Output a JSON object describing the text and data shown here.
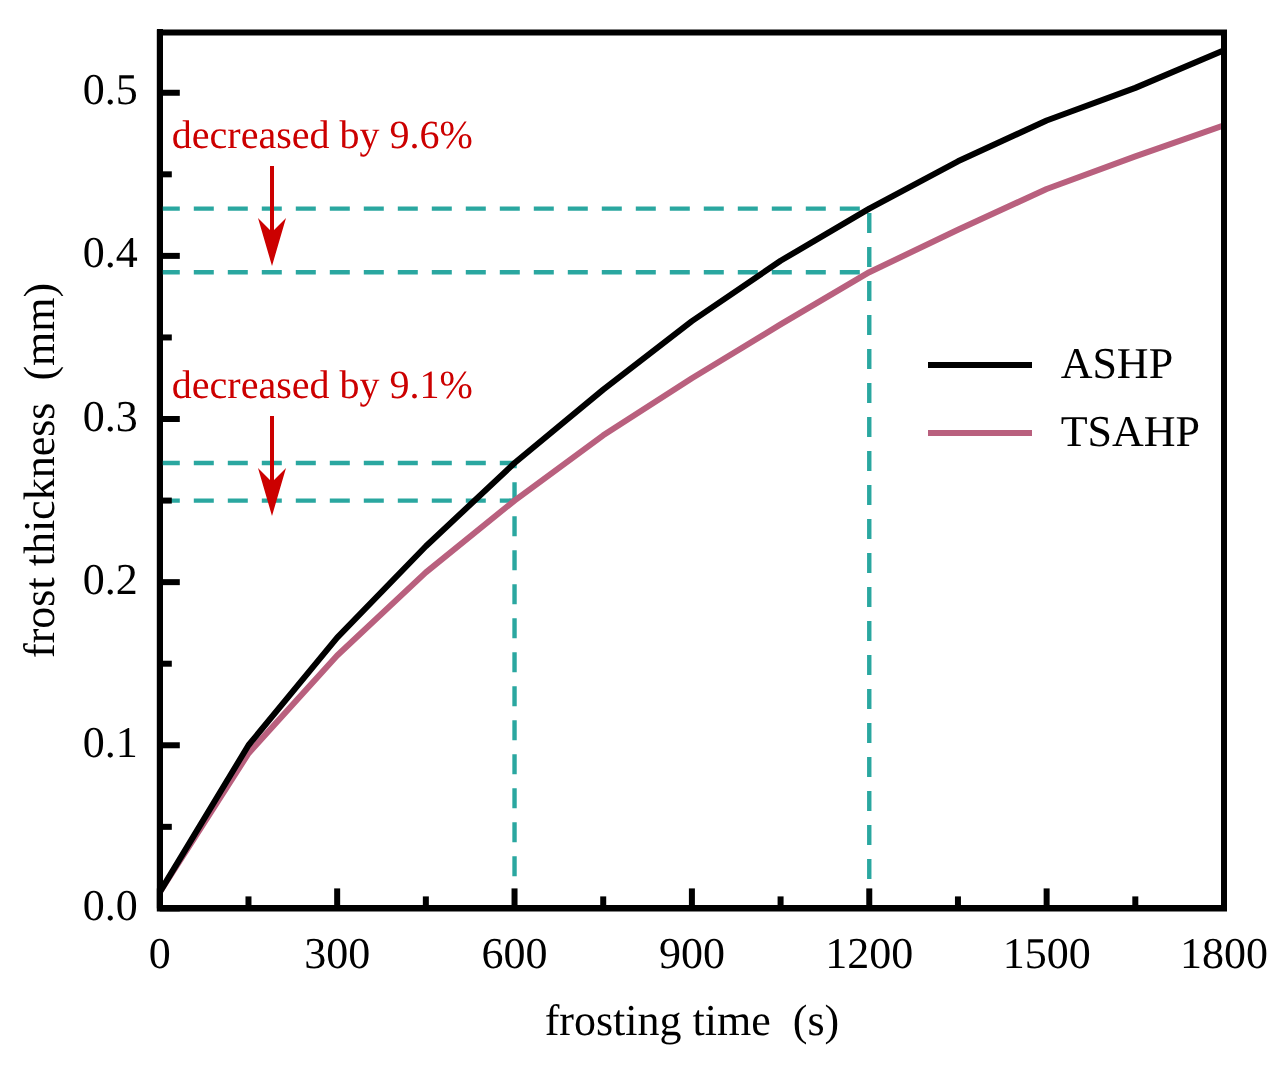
{
  "chart_data": {
    "type": "line",
    "xlabel": "frosting time  (s)",
    "ylabel": "frost thickness  (mm)",
    "x": [
      0,
      150,
      300,
      450,
      600,
      750,
      900,
      1050,
      1200,
      1350,
      1500,
      1650,
      1800
    ],
    "series": [
      {
        "name": "ASHP",
        "color": "#000000",
        "values": [
          0.01,
          0.1,
          0.166,
          0.222,
          0.273,
          0.318,
          0.36,
          0.397,
          0.429,
          0.458,
          0.483,
          0.503,
          0.526
        ]
      },
      {
        "name": "TSAHP",
        "color": "#b9607e",
        "values": [
          0.01,
          0.095,
          0.155,
          0.206,
          0.25,
          0.29,
          0.325,
          0.358,
          0.39,
          0.416,
          0.441,
          0.461,
          0.48
        ]
      },
      {
        "color": "#2aa7a0",
        "line_style": "dashed",
        "x": [
          0,
          1200,
          1200
        ],
        "values": [
          0.429,
          0.429,
          0
        ]
      },
      {
        "color": "#2aa7a0",
        "line_style": "dashed",
        "x": [
          0,
          1200
        ],
        "values": [
          0.39,
          0.39
        ]
      },
      {
        "color": "#2aa7a0",
        "line_style": "dashed",
        "x": [
          0,
          600,
          600
        ],
        "values": [
          0.273,
          0.273,
          0
        ]
      },
      {
        "color": "#2aa7a0",
        "line_style": "dashed",
        "x": [
          0,
          600
        ],
        "values": [
          0.25,
          0.25
        ]
      }
    ],
    "xlim": [
      0,
      1800
    ],
    "xticks": [
      0,
      {
        "value": 150,
        "label": null
      },
      300,
      {
        "value": 450,
        "label": null
      },
      600,
      {
        "value": 750,
        "label": null
      },
      900,
      {
        "value": 1050,
        "label": null
      },
      1200,
      {
        "value": 1350,
        "label": null
      },
      1500,
      {
        "value": 1650,
        "label": null
      },
      1800
    ],
    "ylim": [
      0,
      0.537
    ],
    "yticks": [
      {
        "value": 0,
        "label": "0.0"
      },
      {
        "value": 0.05,
        "label": null
      },
      0.1,
      {
        "value": 0.15,
        "label": null
      },
      0.2,
      {
        "value": 0.25,
        "label": null
      },
      0.3,
      {
        "value": 0.35,
        "label": null
      },
      0.4,
      {
        "value": 0.45,
        "label": null
      },
      0.5
    ],
    "annotations": [
      "decreased by 9.6%",
      "decreased by 9.1%"
    ],
    "grid": false,
    "legend": "right",
    "marker": "none",
    "line_style": "solid"
  }
}
